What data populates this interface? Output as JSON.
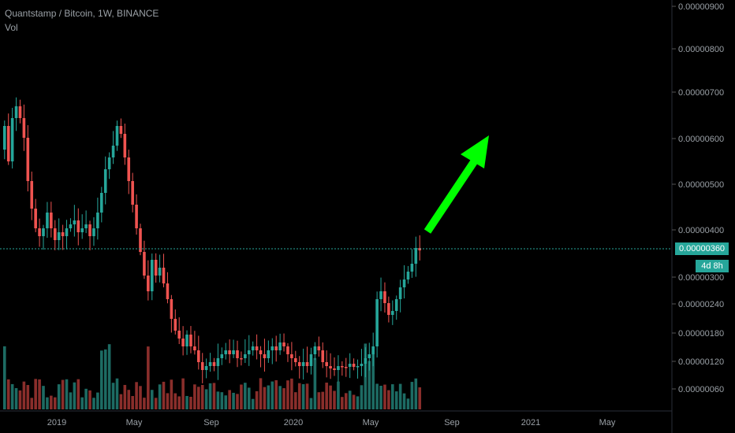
{
  "header": {
    "symbol_line": "Quantstamp / Bitcoin, 1W, BINANCE",
    "volume_label": "Vol"
  },
  "price_tag": "0.00000360",
  "countdown_tag": "4d 8h",
  "colors": {
    "up": "#26a69a",
    "down": "#ef5350",
    "up_volume": "#1d6b63",
    "down_volume": "#8a2e2b",
    "arrow": "#00ff00",
    "axis_text": "#9aa0a6"
  },
  "chart_data": {
    "type": "candlestick",
    "title": "Quantstamp / Bitcoin, 1W, BINANCE",
    "y_ticks": [
      "0.00000900",
      "0.00000800",
      "0.00000700",
      "0.00000600",
      "0.00000500",
      "0.00000400",
      "0.00000300",
      "0.00000240",
      "0.00000180",
      "0.00000120",
      "0.00000060"
    ],
    "x_ticks": [
      "2019",
      "May",
      "Sep",
      "2020",
      "May",
      "Sep",
      "2021",
      "May"
    ],
    "current_price": 3.6e-06,
    "annotation": "green upward arrow",
    "grid": false
  }
}
